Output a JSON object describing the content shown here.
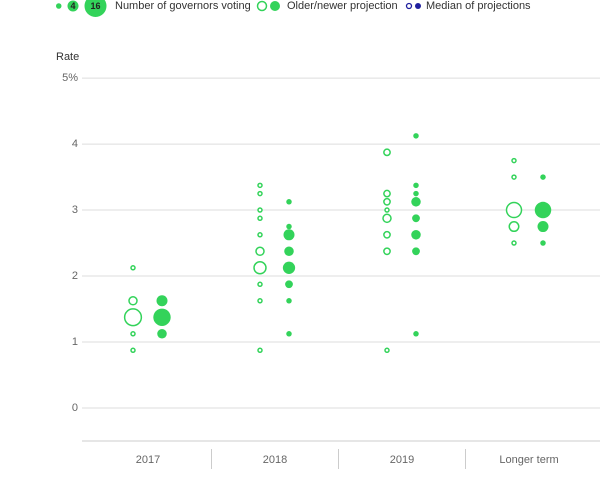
{
  "chart_data": {
    "type": "dotplot",
    "y_label": "Rate",
    "color": "#33d35a",
    "median_color": "#1f1f9e",
    "grid": true,
    "ylim": [
      -0.5,
      5.35
    ],
    "yticks": [
      0,
      1,
      2,
      3,
      {
        "value": 5,
        "label": "5%"
      },
      4
    ],
    "categories": [
      "2017",
      "2018",
      "2019",
      "Longer term"
    ],
    "legend": {
      "sizes": [
        1,
        4,
        16
      ],
      "size_label": "Number of governors voting",
      "projection_label": "Older/newer projection",
      "median_label": "Median of projections"
    },
    "series": [
      {
        "filled": false,
        "points": [
          {
            "category": 0,
            "y": 2.125,
            "size": 1
          },
          {
            "category": 0,
            "y": 1.625,
            "size": 3
          },
          {
            "category": 0,
            "y": 1.375,
            "size": 11
          },
          {
            "category": 0,
            "y": 1.125,
            "size": 1
          },
          {
            "category": 0,
            "y": 0.875,
            "size": 1
          },
          {
            "category": 1,
            "y": 3.375,
            "size": 1
          },
          {
            "category": 1,
            "y": 3.25,
            "size": 1
          },
          {
            "category": 1,
            "y": 3.0,
            "size": 1
          },
          {
            "category": 1,
            "y": 2.875,
            "size": 1
          },
          {
            "category": 1,
            "y": 2.625,
            "size": 1
          },
          {
            "category": 1,
            "y": 2.375,
            "size": 3
          },
          {
            "category": 1,
            "y": 2.125,
            "size": 6
          },
          {
            "category": 1,
            "y": 1.875,
            "size": 1
          },
          {
            "category": 1,
            "y": 1.625,
            "size": 1
          },
          {
            "category": 1,
            "y": 0.875,
            "size": 1
          },
          {
            "category": 2,
            "y": 3.875,
            "size": 2
          },
          {
            "category": 2,
            "y": 3.25,
            "size": 2
          },
          {
            "category": 2,
            "y": 3.125,
            "size": 2
          },
          {
            "category": 2,
            "y": 3.0,
            "size": 1
          },
          {
            "category": 2,
            "y": 2.875,
            "size": 3
          },
          {
            "category": 2,
            "y": 2.625,
            "size": 2
          },
          {
            "category": 2,
            "y": 2.375,
            "size": 2
          },
          {
            "category": 2,
            "y": 0.875,
            "size": 1
          },
          {
            "category": 3,
            "y": 3.75,
            "size": 1
          },
          {
            "category": 3,
            "y": 3.5,
            "size": 1
          },
          {
            "category": 3,
            "y": 3.0,
            "size": 9
          },
          {
            "category": 3,
            "y": 2.75,
            "size": 4
          },
          {
            "category": 3,
            "y": 2.5,
            "size": 1
          }
        ]
      },
      {
        "filled": true,
        "points": [
          {
            "category": 0,
            "y": 1.625,
            "size": 4
          },
          {
            "category": 0,
            "y": 1.375,
            "size": 10
          },
          {
            "category": 0,
            "y": 1.125,
            "size": 3
          },
          {
            "category": 1,
            "y": 3.125,
            "size": 1
          },
          {
            "category": 1,
            "y": 2.75,
            "size": 1
          },
          {
            "category": 1,
            "y": 2.625,
            "size": 4
          },
          {
            "category": 1,
            "y": 2.375,
            "size": 3
          },
          {
            "category": 1,
            "y": 2.125,
            "size": 5
          },
          {
            "category": 1,
            "y": 1.875,
            "size": 2
          },
          {
            "category": 1,
            "y": 1.625,
            "size": 1
          },
          {
            "category": 1,
            "y": 1.125,
            "size": 1
          },
          {
            "category": 2,
            "y": 4.125,
            "size": 1
          },
          {
            "category": 2,
            "y": 3.375,
            "size": 1
          },
          {
            "category": 2,
            "y": 3.25,
            "size": 1
          },
          {
            "category": 2,
            "y": 3.125,
            "size": 3
          },
          {
            "category": 2,
            "y": 2.875,
            "size": 2
          },
          {
            "category": 2,
            "y": 2.625,
            "size": 3
          },
          {
            "category": 2,
            "y": 2.375,
            "size": 2
          },
          {
            "category": 2,
            "y": 1.125,
            "size": 1
          },
          {
            "category": 3,
            "y": 3.5,
            "size": 1
          },
          {
            "category": 3,
            "y": 3.0,
            "size": 9
          },
          {
            "category": 3,
            "y": 2.75,
            "size": 4
          },
          {
            "category": 3,
            "y": 2.5,
            "size": 1
          }
        ]
      }
    ]
  }
}
